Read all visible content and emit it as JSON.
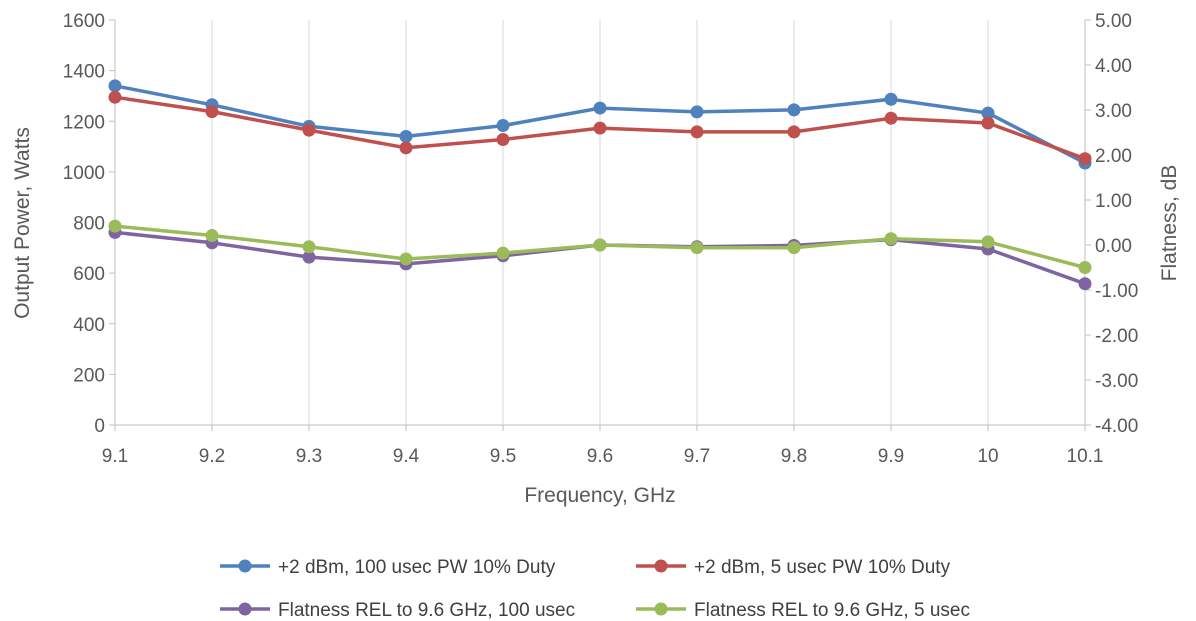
{
  "chart_data": {
    "type": "line",
    "xlabel": "Frequency, GHz",
    "ylabel": "Output Power, Watts",
    "y2label": "Flatness, dB",
    "x": [
      "9.1",
      "9.2",
      "9.3",
      "9.4",
      "9.5",
      "9.6",
      "9.7",
      "9.8",
      "9.9",
      "10",
      "10.1"
    ],
    "ylim": [
      0,
      1600
    ],
    "y_ticks": [
      "0",
      "200",
      "400",
      "600",
      "800",
      "1000",
      "1200",
      "1400",
      "1600"
    ],
    "y2lim": [
      -4,
      5
    ],
    "y2_ticks": [
      "-4.00",
      "-3.00",
      "-2.00",
      "-1.00",
      "0.00",
      "1.00",
      "2.00",
      "3.00",
      "4.00",
      "5.00"
    ],
    "grid": "vertical",
    "legend_position": "bottom",
    "series": [
      {
        "name": "+2 dBm, 100 usec PW 10% Duty",
        "axis": "left",
        "color": "#4f81bd",
        "values": [
          1340,
          1265,
          1180,
          1140,
          1183,
          1252,
          1237,
          1245,
          1287,
          1232,
          1035
        ]
      },
      {
        "name": "+2 dBm, 5 usec PW 10% Duty",
        "axis": "left",
        "color": "#c0504d",
        "values": [
          1295,
          1238,
          1165,
          1095,
          1128,
          1173,
          1158,
          1158,
          1212,
          1193,
          1052
        ]
      },
      {
        "name": "Flatness REL to 9.6 GHz, 100 usec",
        "axis": "right",
        "color": "#8064a2",
        "values": [
          0.28,
          0.05,
          -0.27,
          -0.42,
          -0.24,
          0.0,
          -0.04,
          -0.01,
          0.12,
          -0.09,
          -0.86
        ]
      },
      {
        "name": "Flatness REL to 9.6 GHz, 5 usec",
        "axis": "right",
        "color": "#9bbb59",
        "values": [
          0.42,
          0.21,
          -0.04,
          -0.31,
          -0.18,
          0.0,
          -0.06,
          -0.06,
          0.14,
          0.07,
          -0.5
        ]
      }
    ]
  }
}
